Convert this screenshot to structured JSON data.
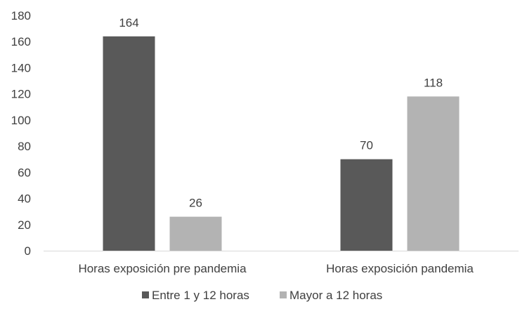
{
  "chart_data": {
    "type": "bar",
    "categories": [
      "Horas exposición pre pandemia",
      "Horas exposición pandemia"
    ],
    "series": [
      {
        "name": "Entre 1 y 12 horas",
        "values": [
          164,
          70
        ],
        "color": "#595959"
      },
      {
        "name": "Mayor a 12 horas",
        "values": [
          26,
          118
        ],
        "color": "#b3b3b3"
      }
    ],
    "ylim": [
      0,
      180
    ],
    "yticks": [
      0,
      20,
      40,
      60,
      80,
      100,
      120,
      140,
      160,
      180
    ],
    "grid": false,
    "legend_position": "bottom",
    "data_labels": true
  }
}
